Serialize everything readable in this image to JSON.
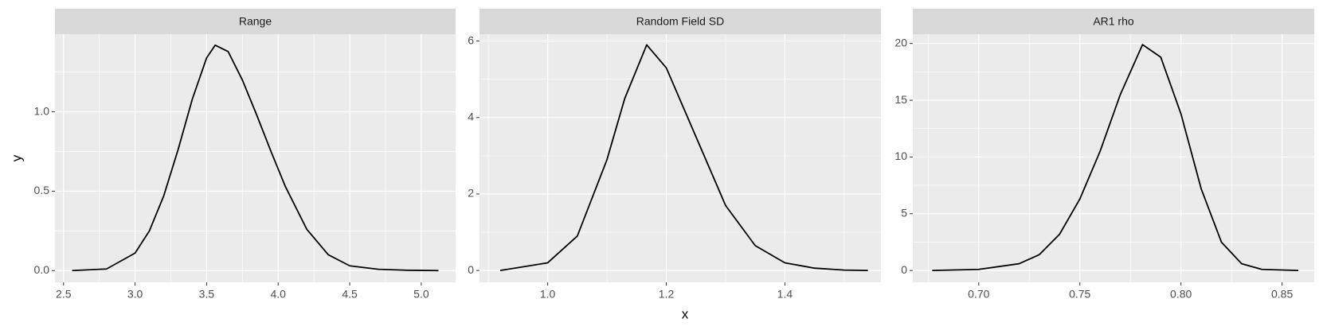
{
  "xlabel": "x",
  "ylabel": "y",
  "chart_data": [
    {
      "type": "line",
      "title": "Range",
      "x": [
        2.56,
        2.8,
        3.0,
        3.1,
        3.2,
        3.3,
        3.4,
        3.5,
        3.56,
        3.65,
        3.75,
        3.85,
        3.95,
        4.05,
        4.2,
        4.35,
        4.5,
        4.7,
        4.9,
        5.12
      ],
      "series": [
        {
          "color": "#000000",
          "values": [
            0,
            0.01,
            0.11,
            0.25,
            0.47,
            0.76,
            1.08,
            1.34,
            1.42,
            1.38,
            1.2,
            0.98,
            0.75,
            0.53,
            0.26,
            0.1,
            0.03,
            0.008,
            0.002,
            0
          ]
        }
      ],
      "xlim": [
        2.44,
        5.24
      ],
      "xticks": [
        2.5,
        {
          "value": 3.0,
          "label": "3.0"
        },
        3.5,
        {
          "value": 4.0,
          "label": "4.0"
        },
        4.5,
        {
          "value": 5.0,
          "label": "5.0"
        }
      ],
      "ylim": [
        -0.074,
        1.489
      ],
      "yticks": [
        {
          "value": 0,
          "label": "0.0"
        },
        0.5,
        {
          "value": 1.0,
          "label": "1.0"
        }
      ],
      "grid": true
    },
    {
      "type": "line",
      "title": "Random Field SD",
      "x": [
        0.92,
        1.0,
        1.05,
        1.1,
        1.13,
        1.167,
        1.2,
        1.25,
        1.3,
        1.35,
        1.4,
        1.45,
        1.5,
        1.54
      ],
      "series": [
        {
          "color": "#000000",
          "values": [
            0,
            0.2,
            0.9,
            2.9,
            4.5,
            5.9,
            5.3,
            3.5,
            1.7,
            0.65,
            0.2,
            0.06,
            0.01,
            0
          ]
        }
      ],
      "xlim": [
        0.885,
        1.562
      ],
      "xticks": [
        {
          "value": 1.0,
          "label": "1.0"
        },
        1.2,
        1.4
      ],
      "ylim": [
        -0.31,
        6.18
      ],
      "yticks": [
        0,
        2,
        4,
        6
      ],
      "grid": true
    },
    {
      "type": "line",
      "title": "AR1 rho",
      "x": [
        0.677,
        0.7,
        0.72,
        0.73,
        0.74,
        0.75,
        0.76,
        0.77,
        0.781,
        0.79,
        0.8,
        0.81,
        0.82,
        0.83,
        0.84,
        0.858
      ],
      "series": [
        {
          "color": "#000000",
          "values": [
            0,
            0.1,
            0.6,
            1.4,
            3.2,
            6.3,
            10.5,
            15.5,
            19.9,
            18.8,
            13.8,
            7.2,
            2.5,
            0.6,
            0.1,
            0
          ]
        }
      ],
      "xlim": [
        0.6674,
        0.8659
      ],
      "xticks": [
        {
          "value": 0.7,
          "label": "0.70"
        },
        0.75,
        {
          "value": 0.8,
          "label": "0.80"
        },
        0.85
      ],
      "ylim": [
        -1.04,
        20.82
      ],
      "yticks": [
        0,
        5,
        10,
        15,
        20
      ],
      "grid": true
    }
  ]
}
